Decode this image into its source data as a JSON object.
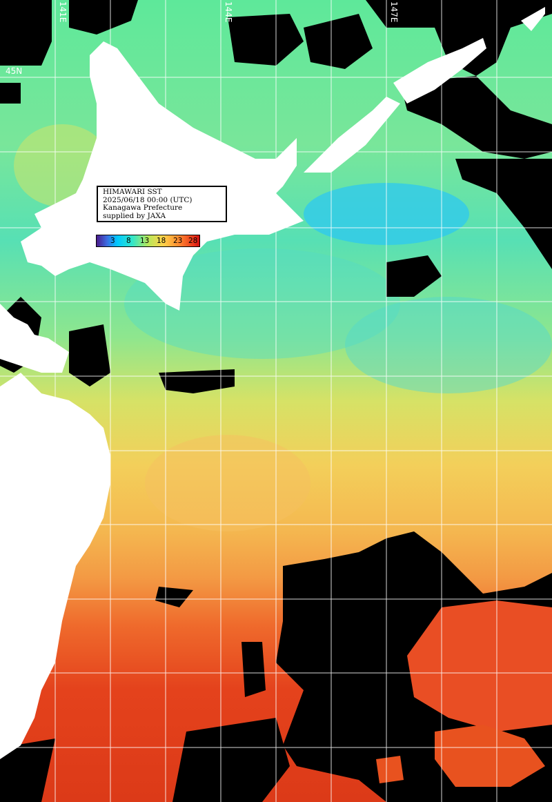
{
  "title_box": {
    "line1": "HIMAWARI SST",
    "line2": "2025/06/18 00:00 (UTC)",
    "line3": "Kanagawa Prefecture",
    "line4": "supplied by JAXA"
  },
  "colorbar": {
    "ticks": [
      "3",
      "8",
      "13",
      "18",
      "23",
      "28"
    ],
    "colors": [
      "#4a1a8a",
      "#00c8ff",
      "#33e6c8",
      "#b6e85a",
      "#ffd24a",
      "#ff8a30",
      "#d01010"
    ]
  },
  "graticule": {
    "lon_labels": [
      "141E",
      "144E",
      "147E"
    ],
    "lat_labels": [
      "45N"
    ]
  },
  "colors": {
    "land": "#ffffff",
    "cloud_no_data": "#000000",
    "grid": "#ffffff"
  }
}
